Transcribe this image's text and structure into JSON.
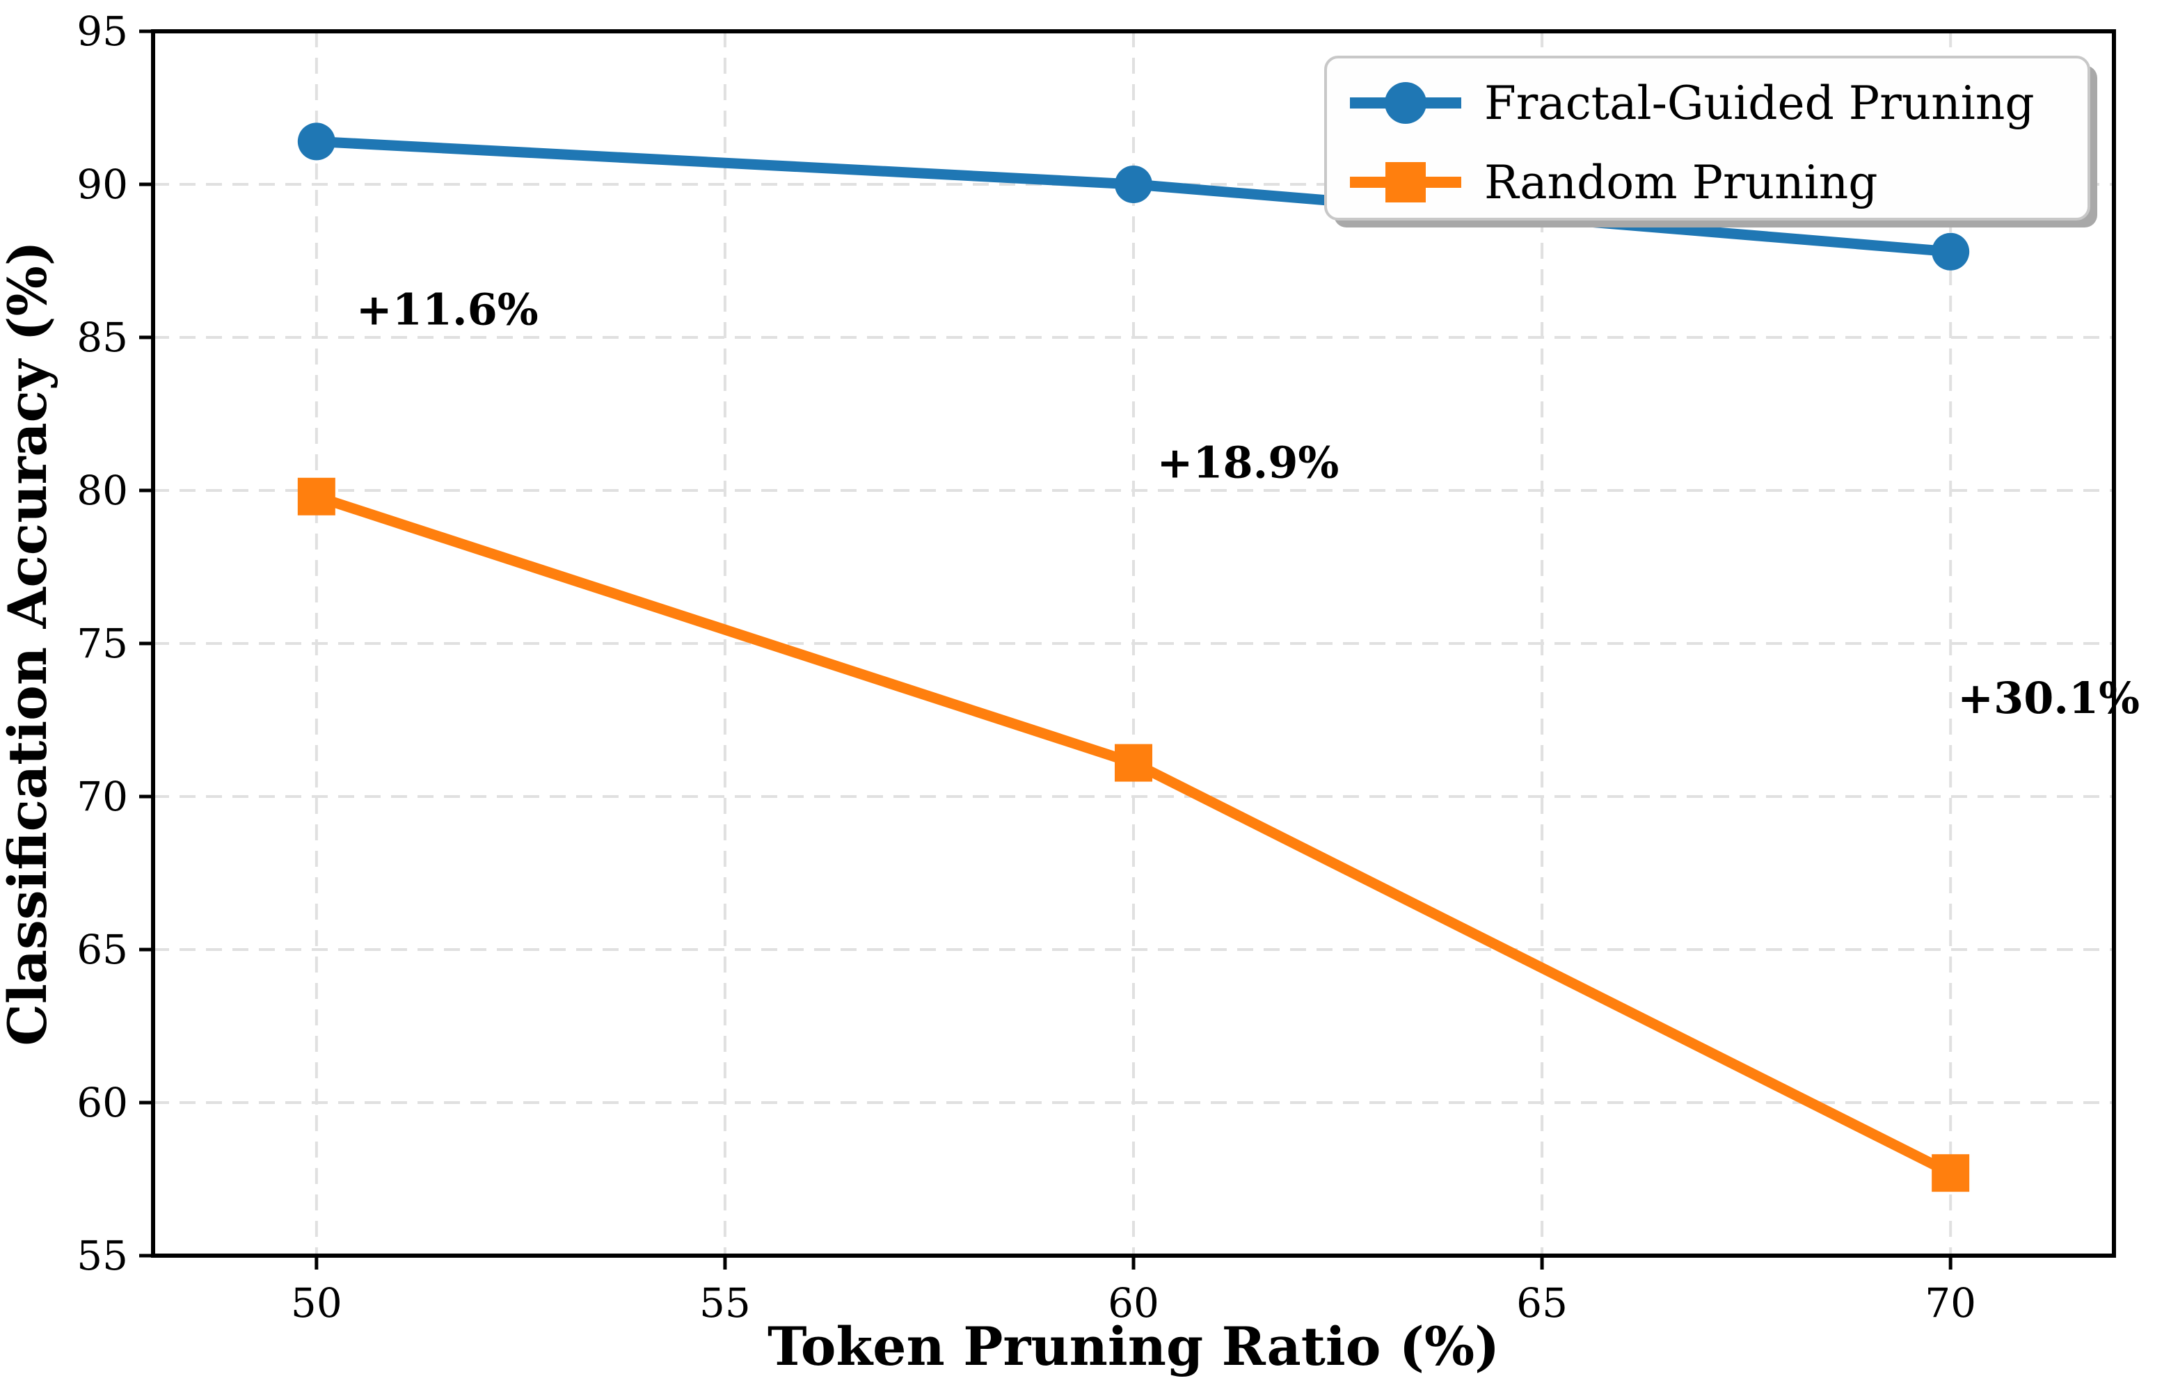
{
  "chart_data": {
    "type": "line",
    "title": "",
    "xlabel": "Token Pruning Ratio (%)",
    "ylabel": "Classification Accuracy (%)",
    "x": [
      50,
      60,
      70
    ],
    "series": [
      {
        "name": "Fractal-Guided Pruning",
        "values": [
          91.4,
          90.0,
          87.8
        ],
        "color": "#1f77b4",
        "marker": "circle"
      },
      {
        "name": "Random Pruning",
        "values": [
          79.8,
          71.1,
          57.7
        ],
        "color": "#ff7f0e",
        "marker": "square"
      }
    ],
    "annotations": [
      {
        "text": "+11.6%",
        "x": 51.6,
        "y": 85.9
      },
      {
        "text": "+18.9%",
        "x": 61.4,
        "y": 80.9
      },
      {
        "text": "+30.1%",
        "x": 71.2,
        "y": 73.2
      }
    ],
    "xticks": [
      50,
      55,
      60,
      65,
      70
    ],
    "yticks": [
      55,
      60,
      65,
      70,
      75,
      80,
      85,
      90,
      95
    ],
    "xlim": [
      48,
      72
    ],
    "ylim": [
      55,
      95
    ],
    "grid": true,
    "grid_style": "dashed",
    "legend_position": "upper right",
    "colors": {
      "background": "#ffffff",
      "grid": "#e0e0e0",
      "spine": "#000000",
      "text": "#000000",
      "legend_bg": "#fefefe",
      "legend_border": "#c8c8c8",
      "legend_shadow": "#a8a8a8"
    }
  }
}
